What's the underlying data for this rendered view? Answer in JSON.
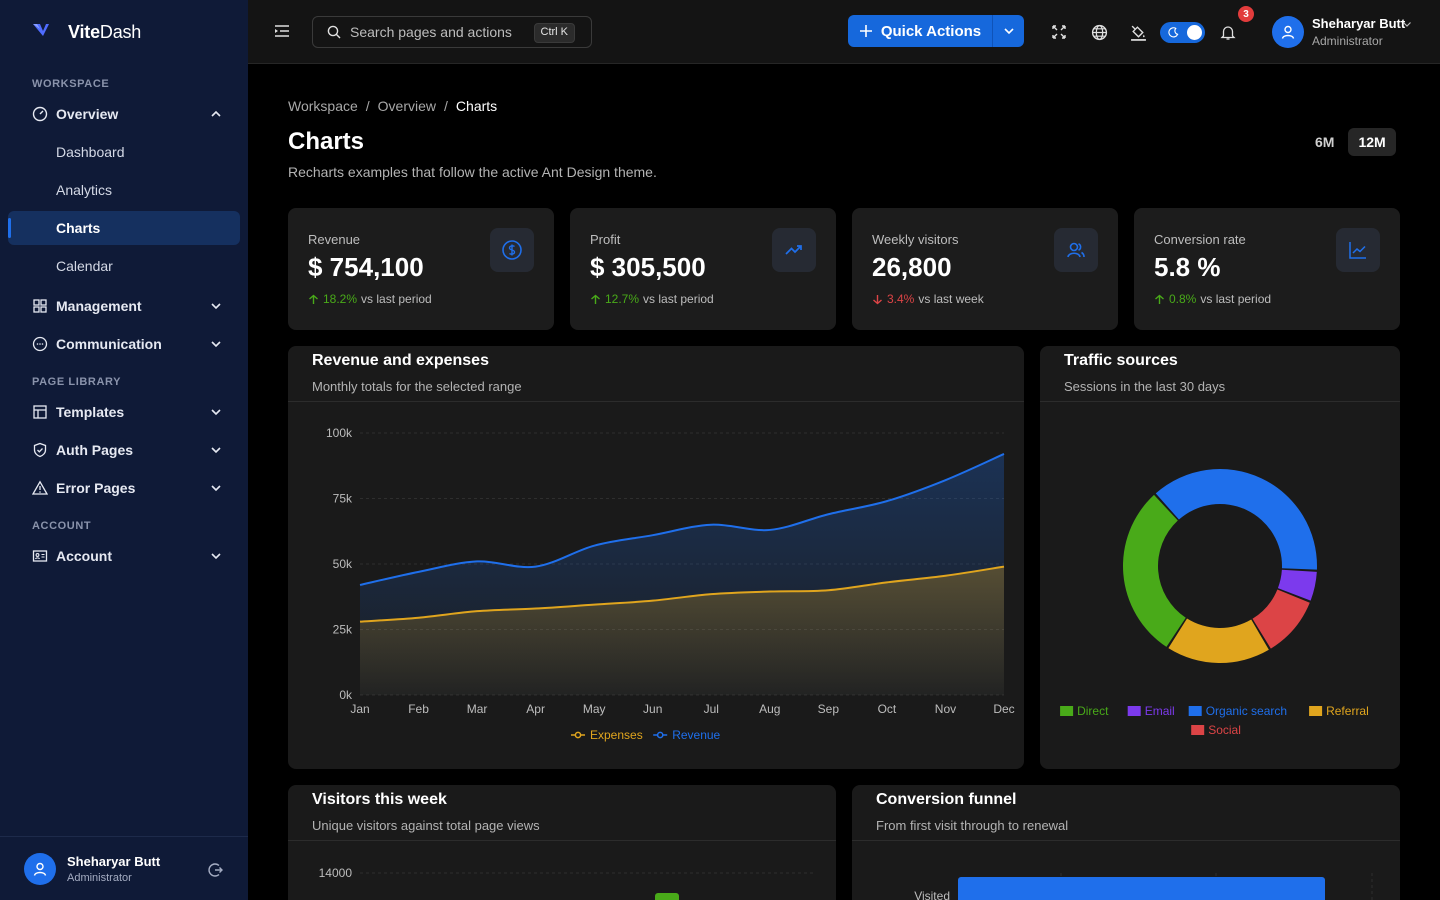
{
  "brand": {
    "name_bold": "Vite",
    "name_light": "Dash"
  },
  "sidebar": {
    "sections": {
      "workspace": "WORKSPACE",
      "library": "PAGE LIBRARY",
      "account": "ACCOUNT"
    },
    "overview": "Overview",
    "sub": [
      "Dashboard",
      "Analytics",
      "Charts",
      "Calendar"
    ],
    "management": "Management",
    "communication": "Communication",
    "templates": "Templates",
    "auth": "Auth Pages",
    "errors": "Error Pages",
    "account": "Account",
    "user": {
      "name": "Sheharyar Butt",
      "role": "Administrator"
    }
  },
  "header": {
    "search_placeholder": "Search pages and actions",
    "shortcut": "Ctrl K",
    "quick_actions": "Quick Actions",
    "notifications_count": "3",
    "user": {
      "name": "Sheharyar Butt",
      "role": "Administrator"
    }
  },
  "page": {
    "breadcrumb": [
      "Workspace",
      "Overview",
      "Charts"
    ],
    "title": "Charts",
    "subtitle": "Recharts examples that follow the active Ant Design theme.",
    "ranges": [
      "6M",
      "12M"
    ],
    "active_range": "12M"
  },
  "kpis": [
    {
      "label": "Revenue",
      "value": "$ 754,100",
      "delta": "18.2%",
      "direction": "up",
      "note": "vs last period",
      "icon": "dollar-icon"
    },
    {
      "label": "Profit",
      "value": "$ 305,500",
      "delta": "12.7%",
      "direction": "up",
      "note": "vs last period",
      "icon": "trend-up-icon"
    },
    {
      "label": "Weekly visitors",
      "value": "26,800",
      "delta": "3.4%",
      "direction": "down",
      "note": "vs last week",
      "icon": "users-icon"
    },
    {
      "label": "Conversion rate",
      "value": "5.8 %",
      "delta": "0.8%",
      "direction": "up",
      "note": "vs last period",
      "icon": "line-chart-icon"
    }
  ],
  "cards": {
    "revenue": {
      "title": "Revenue and expenses",
      "subtitle": "Monthly totals for the selected range"
    },
    "traffic": {
      "title": "Traffic sources",
      "subtitle": "Sessions in the last 30 days"
    },
    "visitors": {
      "title": "Visitors this week",
      "subtitle": "Unique visitors against total page views"
    },
    "funnel": {
      "title": "Conversion funnel",
      "subtitle": "From first visit through to renewal"
    }
  },
  "colors": {
    "accent": "#1668dc",
    "revenue": "#1f6feb",
    "expenses": "#e0a51e",
    "up": "#49aa19",
    "down": "#dc4446"
  },
  "chart_data": [
    {
      "type": "area",
      "categories": [
        "Jan",
        "Feb",
        "Mar",
        "Apr",
        "May",
        "Jun",
        "Jul",
        "Aug",
        "Sep",
        "Oct",
        "Nov",
        "Dec"
      ],
      "series": [
        {
          "name": "Revenue",
          "values": [
            42000,
            47000,
            51000,
            49000,
            57000,
            61000,
            65000,
            63000,
            69000,
            74000,
            82000,
            92000
          ],
          "color": "#1f6feb"
        },
        {
          "name": "Expenses",
          "values": [
            28000,
            29500,
            32000,
            33000,
            34500,
            36000,
            38500,
            39500,
            40000,
            43000,
            45500,
            49000
          ],
          "color": "#e0a51e"
        }
      ],
      "yticks": [
        "0k",
        "25k",
        "50k",
        "75k",
        "100k"
      ],
      "ylim": [
        0,
        100000
      ],
      "legend_order": [
        "Expenses",
        "Revenue"
      ],
      "grid": true,
      "legend": "bottom"
    },
    {
      "type": "pie",
      "donut": true,
      "categories": [
        "Direct",
        "Email",
        "Organic search",
        "Referral",
        "Social"
      ],
      "values": [
        28,
        5,
        36,
        17,
        10
      ],
      "colors": [
        "#49aa19",
        "#7c3aed",
        "#1f6feb",
        "#e0a51e",
        "#dc4446"
      ],
      "legend": "bottom"
    },
    {
      "type": "bar",
      "yticks_visible": [
        "14000"
      ],
      "note": "partially visible"
    },
    {
      "type": "bar",
      "categories_visible": [
        "Visited"
      ],
      "note": "partially visible"
    }
  ]
}
